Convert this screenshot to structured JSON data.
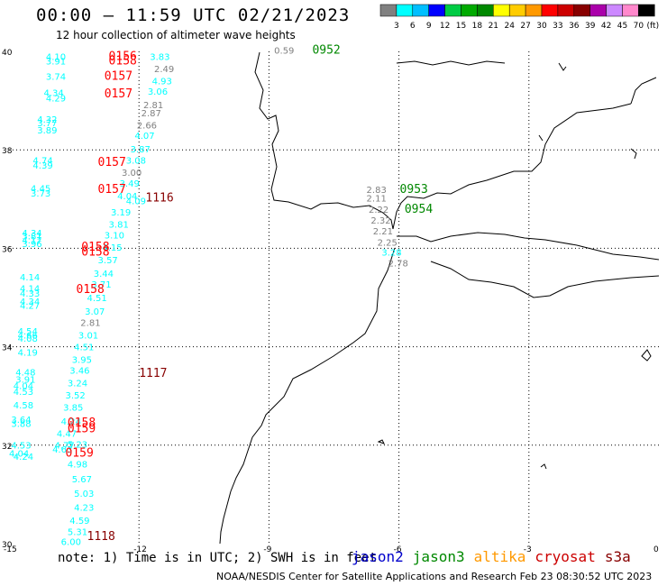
{
  "title": "00:00 – 11:59 UTC 02/21/2023",
  "subtitle": "12 hour collection of altimeter wave heights",
  "colorbar": {
    "labels": [
      "3",
      "6",
      "9",
      "12",
      "15",
      "18",
      "21",
      "24",
      "27",
      "30",
      "33",
      "36",
      "39",
      "42",
      "45",
      "70"
    ],
    "unit": "(ft)",
    "colors": [
      "#808080",
      "#00ffff",
      "#00bfff",
      "#0000ff",
      "#00cc44",
      "#00aa00",
      "#008800",
      "#ffff00",
      "#ffcc00",
      "#ff9900",
      "#ff0000",
      "#cc0000",
      "#880000",
      "#aa00aa",
      "#cc88ff",
      "#ff88cc",
      "#000000"
    ]
  },
  "lat_labels": [
    "40",
    "38",
    "36",
    "34",
    "32",
    "30"
  ],
  "lon_labels": [
    "-15",
    "-12",
    "-9",
    "-6",
    "-3",
    "0"
  ],
  "note": "note: 1) Time is in UTC; 2) SWH is in feet",
  "satellites": [
    {
      "name": "jason2",
      "color": "#0000cc"
    },
    {
      "name": "jason3",
      "color": "#008800"
    },
    {
      "name": "altika",
      "color": "#ff9900"
    },
    {
      "name": "cryosat",
      "color": "#cc0000"
    },
    {
      "name": "s3a",
      "color": "#880000"
    }
  ],
  "credit": "NOAA/NESDIS Center for Satellite Applications and Research   Feb 23 08:30:52 UTC 2023",
  "map": {
    "lon_range": [
      -15,
      0
    ],
    "lat_range": [
      30,
      40
    ],
    "gridlines": "dotted",
    "times": [
      {
        "label": "0156",
        "lon": -12.7,
        "lat": 39.83,
        "color": "#ff0000"
      },
      {
        "label": "0158",
        "lon": -12.7,
        "lat": 39.73,
        "color": "#ff0000"
      },
      {
        "label": "0157",
        "lon": -12.8,
        "lat": 39.42,
        "color": "#ff0000"
      },
      {
        "label": "0157",
        "lon": -12.8,
        "lat": 39.07,
        "color": "#ff0000"
      },
      {
        "label": "0157",
        "lon": -12.95,
        "lat": 37.67,
        "color": "#ff0000"
      },
      {
        "label": "0157",
        "lon": -12.95,
        "lat": 37.12,
        "color": "#ff0000"
      },
      {
        "label": "1116",
        "lon": -11.85,
        "lat": 36.95,
        "color": "#880000"
      },
      {
        "label": "0158",
        "lon": -13.33,
        "lat": 35.95,
        "color": "#ff0000"
      },
      {
        "label": "0158",
        "lon": -13.33,
        "lat": 35.85,
        "color": "#ff0000"
      },
      {
        "label": "0158",
        "lon": -13.45,
        "lat": 35.09,
        "color": "#ff0000"
      },
      {
        "label": "1117",
        "lon": -12.0,
        "lat": 33.39,
        "color": "#880000"
      },
      {
        "label": "0158",
        "lon": -13.65,
        "lat": 32.38,
        "color": "#ff0000"
      },
      {
        "label": "0159",
        "lon": -13.65,
        "lat": 32.26,
        "color": "#ff0000"
      },
      {
        "label": "0159",
        "lon": -13.7,
        "lat": 31.77,
        "color": "#ff0000"
      },
      {
        "label": "1118",
        "lon": -13.2,
        "lat": 30.07,
        "color": "#880000"
      },
      {
        "label": "0952",
        "lon": -8.0,
        "lat": 39.95,
        "color": "#008800"
      },
      {
        "label": "0953",
        "lon": -5.98,
        "lat": 37.12,
        "color": "#008800"
      },
      {
        "label": "0954",
        "lon": -5.87,
        "lat": 36.72,
        "color": "#008800"
      }
    ],
    "swh": [
      {
        "v": "4.10",
        "lon": -14.15,
        "lat": 39.83,
        "c": "#00ffff"
      },
      {
        "v": "3.91",
        "lon": -14.15,
        "lat": 39.73,
        "c": "#00ffff"
      },
      {
        "v": "3.74",
        "lon": -14.15,
        "lat": 39.42,
        "c": "#00ffff"
      },
      {
        "v": "4.34",
        "lon": -14.2,
        "lat": 39.09,
        "c": "#00ffff"
      },
      {
        "v": "4.29",
        "lon": -14.15,
        "lat": 38.98,
        "c": "#00ffff"
      },
      {
        "v": "4.32",
        "lon": -14.35,
        "lat": 38.55,
        "c": "#00ffff"
      },
      {
        "v": "3.77",
        "lon": -14.35,
        "lat": 38.48,
        "c": "#00ffff"
      },
      {
        "v": "3.89",
        "lon": -14.35,
        "lat": 38.33,
        "c": "#00ffff"
      },
      {
        "v": "4.74",
        "lon": -14.45,
        "lat": 37.72,
        "c": "#00ffff"
      },
      {
        "v": "4.39",
        "lon": -14.45,
        "lat": 37.62,
        "c": "#00ffff"
      },
      {
        "v": "4.45",
        "lon": -14.5,
        "lat": 37.15,
        "c": "#00ffff"
      },
      {
        "v": "3.73",
        "lon": -14.5,
        "lat": 37.05,
        "c": "#00ffff"
      },
      {
        "v": "4.34",
        "lon": -14.7,
        "lat": 36.25,
        "c": "#00ffff"
      },
      {
        "v": "3.81",
        "lon": -14.7,
        "lat": 36.18,
        "c": "#00ffff"
      },
      {
        "v": "4.17",
        "lon": -14.7,
        "lat": 36.1,
        "c": "#00ffff"
      },
      {
        "v": "3.96",
        "lon": -14.7,
        "lat": 36.03,
        "c": "#00ffff"
      },
      {
        "v": "4.14",
        "lon": -14.75,
        "lat": 35.35,
        "c": "#00ffff"
      },
      {
        "v": "4.14",
        "lon": -14.75,
        "lat": 35.12,
        "c": "#00ffff"
      },
      {
        "v": "4.33",
        "lon": -14.75,
        "lat": 35.02,
        "c": "#00ffff"
      },
      {
        "v": "4.34",
        "lon": -14.75,
        "lat": 34.85,
        "c": "#00ffff"
      },
      {
        "v": "4.27",
        "lon": -14.75,
        "lat": 34.77,
        "c": "#00ffff"
      },
      {
        "v": "4.54",
        "lon": -14.8,
        "lat": 34.25,
        "c": "#00ffff"
      },
      {
        "v": "4.66",
        "lon": -14.8,
        "lat": 34.17,
        "c": "#00ffff"
      },
      {
        "v": "4.08",
        "lon": -14.8,
        "lat": 34.1,
        "c": "#00ffff"
      },
      {
        "v": "4.19",
        "lon": -14.8,
        "lat": 33.82,
        "c": "#00ffff"
      },
      {
        "v": "4.48",
        "lon": -14.85,
        "lat": 33.42,
        "c": "#00ffff"
      },
      {
        "v": "3.91",
        "lon": -14.85,
        "lat": 33.27,
        "c": "#00ffff"
      },
      {
        "v": "4.04",
        "lon": -14.9,
        "lat": 33.14,
        "c": "#00ffff"
      },
      {
        "v": "4.53",
        "lon": -14.9,
        "lat": 33.02,
        "c": "#00ffff"
      },
      {
        "v": "4.58",
        "lon": -14.9,
        "lat": 32.75,
        "c": "#00ffff"
      },
      {
        "v": "3.64",
        "lon": -14.95,
        "lat": 32.45,
        "c": "#00ffff"
      },
      {
        "v": "3.88",
        "lon": -14.95,
        "lat": 32.37,
        "c": "#00ffff"
      },
      {
        "v": "4.53",
        "lon": -14.95,
        "lat": 31.93,
        "c": "#00ffff"
      },
      {
        "v": "4.04",
        "lon": -15.0,
        "lat": 31.77,
        "c": "#00ffff"
      },
      {
        "v": "4.24",
        "lon": -14.9,
        "lat": 31.7,
        "c": "#00ffff"
      },
      {
        "v": "5.23",
        "lon": -13.65,
        "lat": 31.95,
        "c": "#00ffff"
      },
      {
        "v": "4.63",
        "lon": -14.0,
        "lat": 31.85,
        "c": "#00ffff"
      },
      {
        "v": "4.98",
        "lon": -13.65,
        "lat": 31.55,
        "c": "#00ffff"
      },
      {
        "v": "5.67",
        "lon": -13.55,
        "lat": 31.25,
        "c": "#00ffff"
      },
      {
        "v": "5.03",
        "lon": -13.5,
        "lat": 30.95,
        "c": "#00ffff"
      },
      {
        "v": "4.23",
        "lon": -13.5,
        "lat": 30.67,
        "c": "#00ffff"
      },
      {
        "v": "4.59",
        "lon": -13.6,
        "lat": 30.4,
        "c": "#00ffff"
      },
      {
        "v": "5.31",
        "lon": -13.65,
        "lat": 30.17,
        "c": "#00ffff"
      },
      {
        "v": "6.00",
        "lon": -13.8,
        "lat": 29.97,
        "c": "#00ffff"
      },
      {
        "v": "3.83",
        "lon": -11.75,
        "lat": 39.83,
        "c": "#00ffff"
      },
      {
        "v": "2.49",
        "lon": -11.65,
        "lat": 39.58,
        "c": "#808080"
      },
      {
        "v": "4.93",
        "lon": -11.7,
        "lat": 39.33,
        "c": "#00ffff"
      },
      {
        "v": "3.06",
        "lon": -11.8,
        "lat": 39.12,
        "c": "#00ffff"
      },
      {
        "v": "2.81",
        "lon": -11.9,
        "lat": 38.85,
        "c": "#808080"
      },
      {
        "v": "2.87",
        "lon": -11.95,
        "lat": 38.68,
        "c": "#808080"
      },
      {
        "v": "2.66",
        "lon": -12.05,
        "lat": 38.43,
        "c": "#808080"
      },
      {
        "v": "4.07",
        "lon": -12.1,
        "lat": 38.22,
        "c": "#00ffff"
      },
      {
        "v": "3.87",
        "lon": -12.2,
        "lat": 37.95,
        "c": "#00ffff"
      },
      {
        "v": "3.08",
        "lon": -12.3,
        "lat": 37.72,
        "c": "#00ffff"
      },
      {
        "v": "3.00",
        "lon": -12.4,
        "lat": 37.47,
        "c": "#808080"
      },
      {
        "v": "3.49",
        "lon": -12.45,
        "lat": 37.25,
        "c": "#00ffff"
      },
      {
        "v": "4.04",
        "lon": -12.5,
        "lat": 37.0,
        "c": "#00ffff"
      },
      {
        "v": "4.09",
        "lon": -12.3,
        "lat": 36.9,
        "c": "#00ffff"
      },
      {
        "v": "3.19",
        "lon": -12.65,
        "lat": 36.67,
        "c": "#00ffff"
      },
      {
        "v": "3.81",
        "lon": -12.7,
        "lat": 36.42,
        "c": "#00ffff"
      },
      {
        "v": "3.10",
        "lon": -12.8,
        "lat": 36.2,
        "c": "#00ffff"
      },
      {
        "v": "4.15",
        "lon": -12.85,
        "lat": 35.95,
        "c": "#00ffff"
      },
      {
        "v": "3.57",
        "lon": -12.95,
        "lat": 35.7,
        "c": "#00ffff"
      },
      {
        "v": "3.44",
        "lon": -13.05,
        "lat": 35.42,
        "c": "#00ffff"
      },
      {
        "v": "3.71",
        "lon": -13.1,
        "lat": 35.2,
        "c": "#00ffff"
      },
      {
        "v": "4.51",
        "lon": -13.2,
        "lat": 34.93,
        "c": "#00ffff"
      },
      {
        "v": "3.07",
        "lon": -13.25,
        "lat": 34.65,
        "c": "#00ffff"
      },
      {
        "v": "2.81",
        "lon": -13.35,
        "lat": 34.42,
        "c": "#808080"
      },
      {
        "v": "3.01",
        "lon": -13.4,
        "lat": 34.17,
        "c": "#00ffff"
      },
      {
        "v": "4.51",
        "lon": -13.5,
        "lat": 33.93,
        "c": "#00ffff"
      },
      {
        "v": "3.95",
        "lon": -13.55,
        "lat": 33.67,
        "c": "#00ffff"
      },
      {
        "v": "3.46",
        "lon": -13.6,
        "lat": 33.45,
        "c": "#00ffff"
      },
      {
        "v": "3.24",
        "lon": -13.65,
        "lat": 33.2,
        "c": "#00ffff"
      },
      {
        "v": "3.52",
        "lon": -13.7,
        "lat": 32.95,
        "c": "#00ffff"
      },
      {
        "v": "3.85",
        "lon": -13.75,
        "lat": 32.7,
        "c": "#00ffff"
      },
      {
        "v": "4.24",
        "lon": -13.8,
        "lat": 32.42,
        "c": "#00ffff"
      },
      {
        "v": "4.47",
        "lon": -13.9,
        "lat": 32.17,
        "c": "#00ffff"
      },
      {
        "v": "4.77",
        "lon": -13.95,
        "lat": 31.93,
        "c": "#00ffff"
      },
      {
        "v": "0.59",
        "lon": -8.88,
        "lat": 39.95,
        "c": "#808080"
      },
      {
        "v": "2.83",
        "lon": -6.75,
        "lat": 37.12,
        "c": "#808080"
      },
      {
        "v": "2.11",
        "lon": -6.75,
        "lat": 36.95,
        "c": "#808080"
      },
      {
        "v": "2.22",
        "lon": -6.7,
        "lat": 36.72,
        "c": "#808080"
      },
      {
        "v": "2.32",
        "lon": -6.65,
        "lat": 36.5,
        "c": "#808080"
      },
      {
        "v": "2.21",
        "lon": -6.6,
        "lat": 36.28,
        "c": "#808080"
      },
      {
        "v": "2.25",
        "lon": -6.5,
        "lat": 36.05,
        "c": "#808080"
      },
      {
        "v": "3.28",
        "lon": -6.4,
        "lat": 35.85,
        "c": "#00ffff"
      },
      {
        "v": "2.78",
        "lon": -6.25,
        "lat": 35.63,
        "c": "#808080"
      }
    ]
  }
}
